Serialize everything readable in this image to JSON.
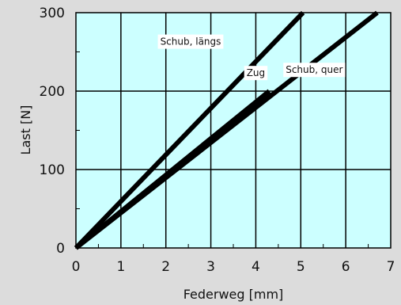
{
  "chart_data": {
    "type": "line",
    "title": "",
    "xlabel": "Federweg [mm]",
    "ylabel": "Last [N]",
    "xlim": [
      0,
      7
    ],
    "ylim": [
      0,
      300
    ],
    "x_ticks": [
      0,
      1,
      2,
      3,
      4,
      5,
      6,
      7
    ],
    "y_ticks": [
      0,
      100,
      200,
      300
    ],
    "grid": true,
    "legend": "none",
    "plot_background": "#ccffff",
    "page_background": "#dcdcdc",
    "line_color": "#000000",
    "series": [
      {
        "name": "Schub, längs",
        "x": [
          0,
          5.05
        ],
        "y": [
          0,
          300
        ]
      },
      {
        "name": "Zug",
        "x": [
          0,
          4.3
        ],
        "y": [
          0,
          200
        ]
      },
      {
        "name": "Schub, quer",
        "x": [
          0,
          6.7
        ],
        "y": [
          0,
          300
        ]
      }
    ],
    "annotations": [
      {
        "text": "Schub, längs",
        "x": 2.55,
        "y": 259
      },
      {
        "text": "Zug",
        "x": 4.0,
        "y": 219
      },
      {
        "text": "Schub, quer",
        "x": 5.3,
        "y": 223
      }
    ]
  }
}
